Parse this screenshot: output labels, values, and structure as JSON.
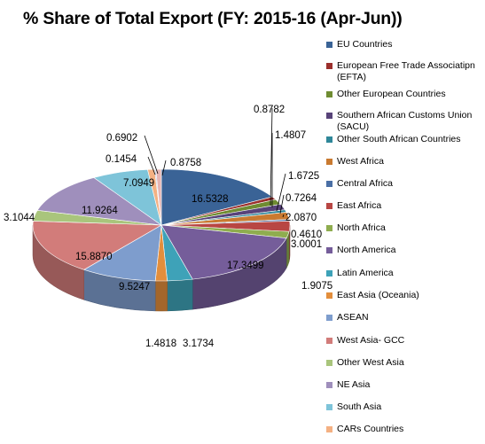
{
  "chart_data": {
    "type": "pie",
    "title": "% Share of Total Export (FY: 2015-16 (Apr-Jun))",
    "legend_position": "right",
    "slices": [
      {
        "label": "EU Countries",
        "value": 16.5328,
        "color": "#3a6396"
      },
      {
        "label": "European Free Trade Associatipn (EFTA)",
        "value": 0.8782,
        "color": "#9b2f2c"
      },
      {
        "label": "Other European Countries",
        "value": 1.4807,
        "color": "#6f8c32"
      },
      {
        "label": "Southern African Customs Union (SACU)",
        "value": 1.6725,
        "color": "#584379"
      },
      {
        "label": "Other South African Countries",
        "value": 0.7264,
        "color": "#2f8799"
      },
      {
        "label": "West Africa",
        "value": 2.087,
        "color": "#c97a30"
      },
      {
        "label": "Central Africa",
        "value": 0.461,
        "color": "#4a6fa5"
      },
      {
        "label": "East Africa",
        "value": 3.0001,
        "color": "#b84643"
      },
      {
        "label": "North Africa",
        "value": 1.9075,
        "color": "#8fad4f"
      },
      {
        "label": "North America",
        "value": 17.3499,
        "color": "#755d9a"
      },
      {
        "label": "Latin America",
        "value": 3.1734,
        "color": "#3ea2b8"
      },
      {
        "label": "East Asia (Oceania)",
        "value": 1.4818,
        "color": "#e38e3c"
      },
      {
        "label": "ASEAN",
        "value": 9.5247,
        "color": "#7e9dcd"
      },
      {
        "label": "West Asia- GCC",
        "value": 15.887,
        "color": "#d27c7a"
      },
      {
        "label": "Other West Asia",
        "value": 3.1044,
        "color": "#a9c57c"
      },
      {
        "label": "NE Asia",
        "value": 11.9264,
        "color": "#9f8fbc"
      },
      {
        "label": "South Asia",
        "value": 7.0949,
        "color": "#7ec4d9"
      },
      {
        "label": "CARs Countries",
        "value": 0.8758,
        "color": "#f4b183"
      },
      {
        "label": "",
        "value": 0.1454,
        "color": "#a7bcdc"
      },
      {
        "label": "",
        "value": 0.6902,
        "color": "#e6b5b4"
      }
    ],
    "data_labels": [
      "16.5328",
      "0.8782",
      "1.4807",
      "1.6725",
      "0.7264",
      "2.0870",
      "0.4610",
      "3.0001",
      "1.9075",
      "17.3499",
      "3.1734",
      "1.4818",
      "9.5247",
      "15.8870",
      "3.1044",
      "11.9264",
      "7.0949",
      "0.8758",
      "0.1454",
      "0.6902"
    ]
  }
}
